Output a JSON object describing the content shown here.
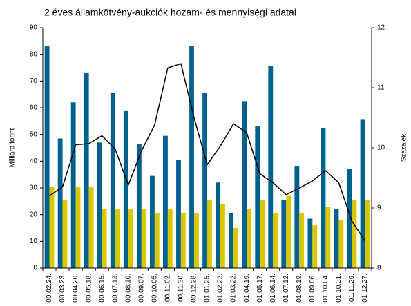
{
  "chart_data": {
    "type": "bar",
    "title": "2 éves államkötvény-aukciók hozam- és mennyiségi adatai",
    "ylabel": "Milliárd forint",
    "y2label": "Százalék",
    "categories": [
      "00.02.24.",
      "00.03.23.",
      "00.04.20.",
      "00.05.18.",
      "00.06.15.",
      "00.07.13.",
      "00.08.10.",
      "00.09.07.",
      "00.10.05.",
      "00.11.02.",
      "00.11.30.",
      "00.12.28.",
      "01.01.25.",
      "01.02.22.",
      "01.03.22.",
      "01.04.19.",
      "01.05.17.",
      "01.06.14.",
      "01.07.12.",
      "01.08.19.",
      "01.09.06.",
      "01.10.04.",
      "01.10.31.",
      "01.11.29.",
      "01.12.27."
    ],
    "series": [
      {
        "type": "bar",
        "color": "#00618e",
        "values": [
          83,
          48.5,
          62,
          73,
          47,
          65.5,
          59,
          46.5,
          34.5,
          49.5,
          40.5,
          83,
          65.5,
          32,
          20.5,
          62.5,
          53,
          75.5,
          25.5,
          38,
          18.5,
          52.5,
          22,
          37,
          55.5
        ]
      },
      {
        "type": "bar",
        "color": "#d9c800",
        "values": [
          30.5,
          25.5,
          30.5,
          30.5,
          22,
          22,
          22,
          22,
          20.5,
          22,
          20.5,
          20.5,
          25.5,
          24,
          15,
          22,
          25.5,
          20.5,
          27,
          20.5,
          16,
          23,
          18,
          25.5,
          25.5
        ]
      },
      {
        "type": "line",
        "axis": "y2",
        "color": "#000000",
        "values": [
          9.2,
          9.35,
          10.05,
          10.07,
          10.2,
          9.98,
          9.38,
          9.95,
          10.38,
          11.33,
          11.4,
          10.5,
          9.72,
          10.03,
          10.4,
          10.25,
          9.57,
          9.42,
          9.22,
          9.33,
          9.45,
          9.62,
          9.42,
          8.78,
          8.45
        ]
      }
    ],
    "ylim": [
      0,
      90
    ],
    "yticks": [
      0,
      10,
      20,
      30,
      40,
      50,
      60,
      70,
      80,
      90
    ],
    "y2lim": [
      8,
      12
    ],
    "y2ticks": [
      8,
      9,
      10,
      11,
      12
    ]
  }
}
